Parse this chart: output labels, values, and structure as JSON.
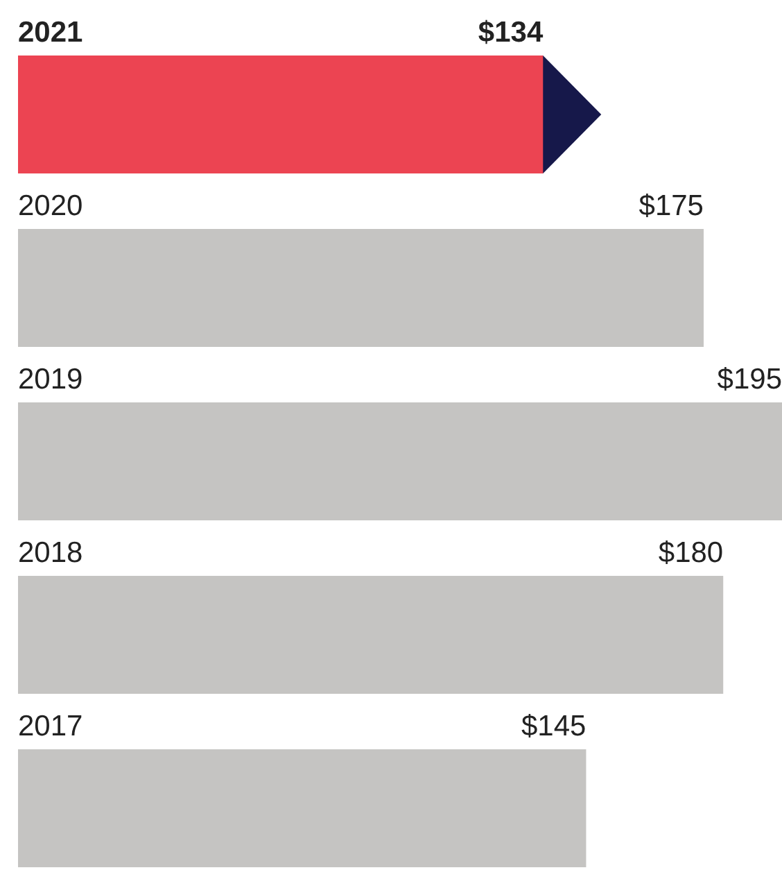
{
  "chart_data": {
    "type": "bar",
    "orientation": "horizontal",
    "categories": [
      "2021",
      "2020",
      "2019",
      "2018",
      "2017"
    ],
    "values": [
      134,
      175,
      195,
      180,
      145
    ],
    "colors": [
      "#ec4452",
      "#c5c4c2",
      "#c5c4c2",
      "#c5c4c2",
      "#c5c4c2"
    ],
    "value_labels": [
      "$134",
      "$175",
      "$195",
      "$180",
      "$145"
    ]
  }
}
